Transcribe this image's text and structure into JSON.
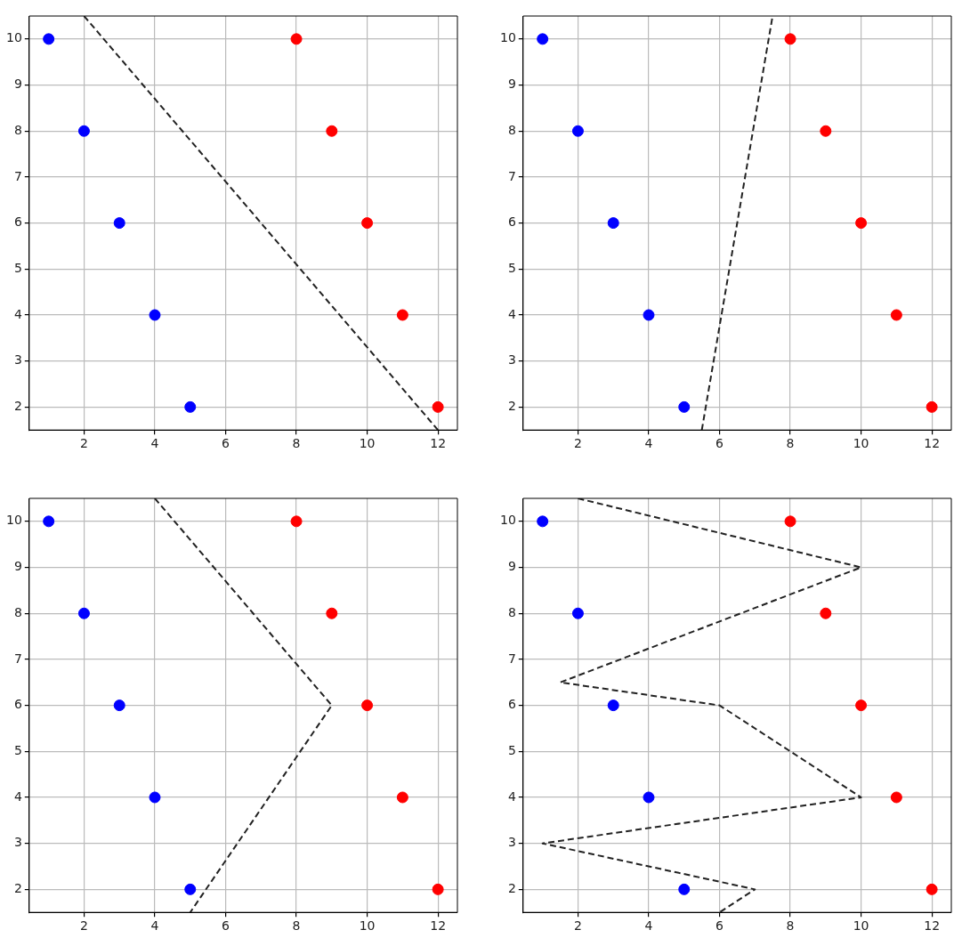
{
  "chart_data": [
    {
      "type": "scatter",
      "xlim": [
        0.45,
        12.55
      ],
      "ylim": [
        1.5,
        10.5
      ],
      "xticks": [
        2,
        4,
        6,
        8,
        10,
        12
      ],
      "yticks": [
        2,
        3,
        4,
        5,
        6,
        7,
        8,
        9,
        10
      ],
      "grid": true,
      "series": [
        {
          "color": "#0000ff",
          "marker": "circle",
          "x": [
            1,
            2,
            3,
            4,
            5
          ],
          "values": [
            10,
            8,
            6,
            4,
            2
          ]
        },
        {
          "color": "#ff0000",
          "marker": "circle",
          "x": [
            8,
            9,
            10,
            11,
            12
          ],
          "values": [
            10,
            8,
            6,
            4,
            2
          ]
        },
        {
          "type": "line",
          "color": "#222222",
          "marker": "none",
          "line_style": "dashed",
          "x": [
            2,
            12
          ],
          "values": [
            10.5,
            1.5
          ]
        }
      ]
    },
    {
      "type": "scatter",
      "xlim": [
        0.45,
        12.55
      ],
      "ylim": [
        1.5,
        10.5
      ],
      "xticks": [
        2,
        4,
        6,
        8,
        10,
        12
      ],
      "yticks": [
        2,
        3,
        4,
        5,
        6,
        7,
        8,
        9,
        10
      ],
      "grid": true,
      "series": [
        {
          "color": "#0000ff",
          "marker": "circle",
          "x": [
            1,
            2,
            3,
            4,
            5
          ],
          "values": [
            10,
            8,
            6,
            4,
            2
          ]
        },
        {
          "color": "#ff0000",
          "marker": "circle",
          "x": [
            8,
            9,
            10,
            11,
            12
          ],
          "values": [
            10,
            8,
            6,
            4,
            2
          ]
        },
        {
          "type": "line",
          "color": "#222222",
          "marker": "none",
          "line_style": "dashed",
          "x": [
            5.5,
            7.5
          ],
          "values": [
            1.5,
            10.5
          ]
        }
      ]
    },
    {
      "type": "scatter",
      "xlim": [
        0.45,
        12.55
      ],
      "ylim": [
        1.5,
        10.5
      ],
      "xticks": [
        2,
        4,
        6,
        8,
        10,
        12
      ],
      "yticks": [
        2,
        3,
        4,
        5,
        6,
        7,
        8,
        9,
        10
      ],
      "grid": true,
      "series": [
        {
          "color": "#0000ff",
          "marker": "circle",
          "x": [
            1,
            2,
            3,
            4,
            5
          ],
          "values": [
            10,
            8,
            6,
            4,
            2
          ]
        },
        {
          "color": "#ff0000",
          "marker": "circle",
          "x": [
            8,
            9,
            10,
            11,
            12
          ],
          "values": [
            10,
            8,
            6,
            4,
            2
          ]
        },
        {
          "type": "line",
          "color": "#222222",
          "marker": "none",
          "line_style": "dashed",
          "x": [
            4,
            9,
            5
          ],
          "values": [
            10.5,
            6,
            1.5
          ]
        }
      ]
    },
    {
      "type": "scatter",
      "xlim": [
        0.45,
        12.55
      ],
      "ylim": [
        1.5,
        10.5
      ],
      "xticks": [
        2,
        4,
        6,
        8,
        10,
        12
      ],
      "yticks": [
        2,
        3,
        4,
        5,
        6,
        7,
        8,
        9,
        10
      ],
      "grid": true,
      "series": [
        {
          "color": "#0000ff",
          "marker": "circle",
          "x": [
            1,
            2,
            3,
            4,
            5
          ],
          "values": [
            10,
            8,
            6,
            4,
            2
          ]
        },
        {
          "color": "#ff0000",
          "marker": "circle",
          "x": [
            8,
            9,
            10,
            11,
            12
          ],
          "values": [
            10,
            8,
            6,
            4,
            2
          ]
        },
        {
          "type": "line",
          "color": "#222222",
          "marker": "none",
          "line_style": "dashed",
          "x": [
            2,
            10,
            1.5,
            6,
            10,
            1,
            7,
            6
          ],
          "values": [
            10.5,
            9,
            6.5,
            6,
            4,
            3,
            2,
            1.5
          ]
        }
      ]
    }
  ]
}
